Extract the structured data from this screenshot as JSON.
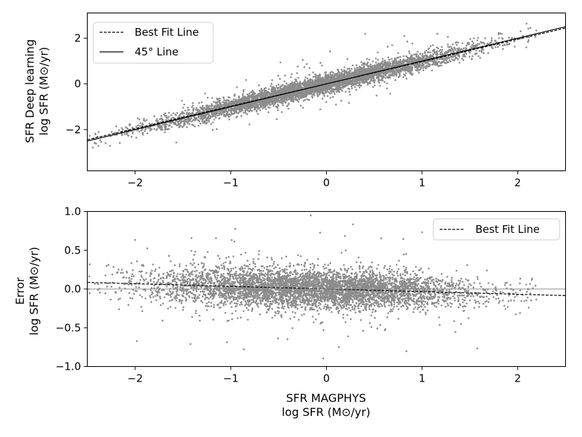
{
  "chart_data": [
    {
      "type": "scatter",
      "title": "",
      "ylabel_line1": "SFR Deep learning",
      "ylabel_line2": "log SFR (M⊙/yr)",
      "xlabel": "",
      "xlim": [
        -2.5,
        2.5
      ],
      "ylim": [
        -3.8,
        3.1
      ],
      "xticks": [
        -2,
        -1,
        0,
        1,
        2
      ],
      "xtick_labels": [
        "−2",
        "−1",
        "0",
        "1",
        "2"
      ],
      "yticks": [
        -2,
        0,
        2
      ],
      "ytick_labels": [
        "−2",
        "0",
        "2"
      ],
      "grid": false,
      "legend_position": "top-left",
      "legend": [
        {
          "label": "Best Fit Line",
          "style": "dashed"
        },
        {
          "label": "45° Line",
          "style": "solid"
        }
      ],
      "lines": [
        {
          "name": "Best Fit Line",
          "style": "dashed",
          "x": [
            -2.5,
            2.5
          ],
          "y": [
            -2.44,
            2.44
          ]
        },
        {
          "name": "45° Line",
          "style": "solid",
          "x": [
            -2.5,
            2.5
          ],
          "y": [
            -2.5,
            2.5
          ]
        }
      ],
      "point_color": "#8c8c8c",
      "scatter_trend": {
        "x_range": [
          -2.5,
          2.2
        ],
        "slope": 1.0,
        "intercept": 0.0,
        "scatter_sd": 0.2
      }
    },
    {
      "type": "scatter",
      "title": "",
      "ylabel_line1": "Error",
      "ylabel_line2": "log SFR (M⊙/yr)",
      "xlabel_line1": "SFR MAGPHYS",
      "xlabel_line2": "log SFR (M⊙/yr)",
      "xlim": [
        -2.5,
        2.5
      ],
      "ylim": [
        -1.0,
        1.0
      ],
      "xticks": [
        -2,
        -1,
        0,
        1,
        2
      ],
      "xtick_labels": [
        "−2",
        "−1",
        "0",
        "1",
        "2"
      ],
      "yticks": [
        -1.0,
        -0.5,
        0.0,
        0.5,
        1.0
      ],
      "ytick_labels": [
        "−1.0",
        "−0.5",
        "0.0",
        "0.5",
        "1.0"
      ],
      "grid": false,
      "legend_position": "top-right",
      "legend": [
        {
          "label": "Best Fit Line",
          "style": "dashed"
        }
      ],
      "lines": [
        {
          "name": "Best Fit Line",
          "style": "dashed",
          "x": [
            -2.5,
            2.5
          ],
          "y": [
            0.085,
            -0.085
          ]
        },
        {
          "name": "zero",
          "style": "solid-gray",
          "x": [
            -2.5,
            2.5
          ],
          "y": [
            0.0,
            0.0
          ]
        }
      ],
      "point_color": "#8c8c8c",
      "scatter_trend": {
        "x_range": [
          -2.5,
          2.2
        ],
        "slope": -0.034,
        "intercept": 0.0,
        "scatter_sd": 0.12
      }
    }
  ]
}
